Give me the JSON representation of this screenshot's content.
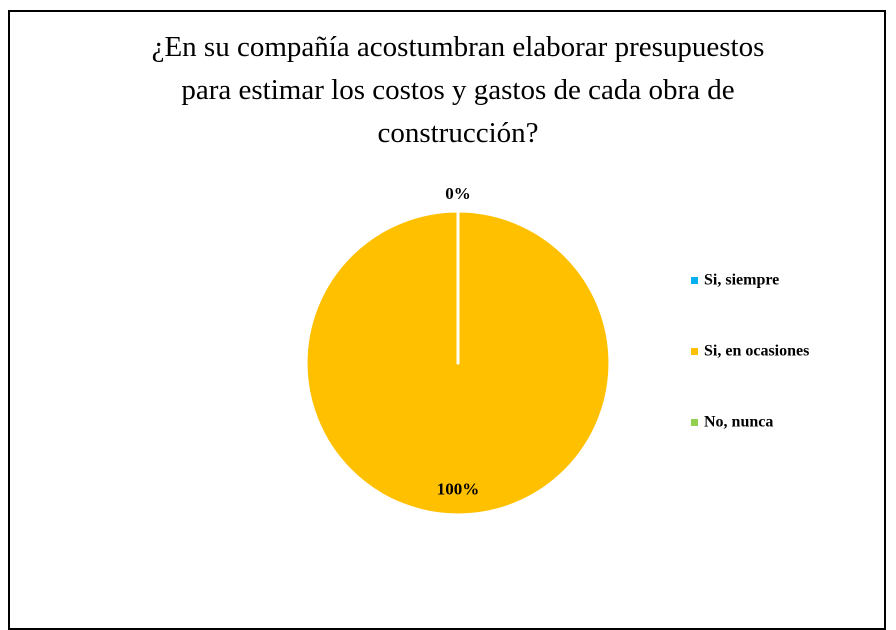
{
  "chart_data": {
    "type": "pie",
    "title": "¿En su compañía acostumbran elaborar presupuestos para estimar los costos y gastos de cada obra de construcción?",
    "categories": [
      "Si, siempre",
      "Si, en ocasiones",
      "No, nunca"
    ],
    "values": [
      0,
      100,
      0
    ],
    "value_labels": [
      "0%",
      "100%",
      null
    ],
    "colors": [
      "#00b0f0",
      "#ffc000",
      "#92d050"
    ],
    "legend": "right"
  }
}
